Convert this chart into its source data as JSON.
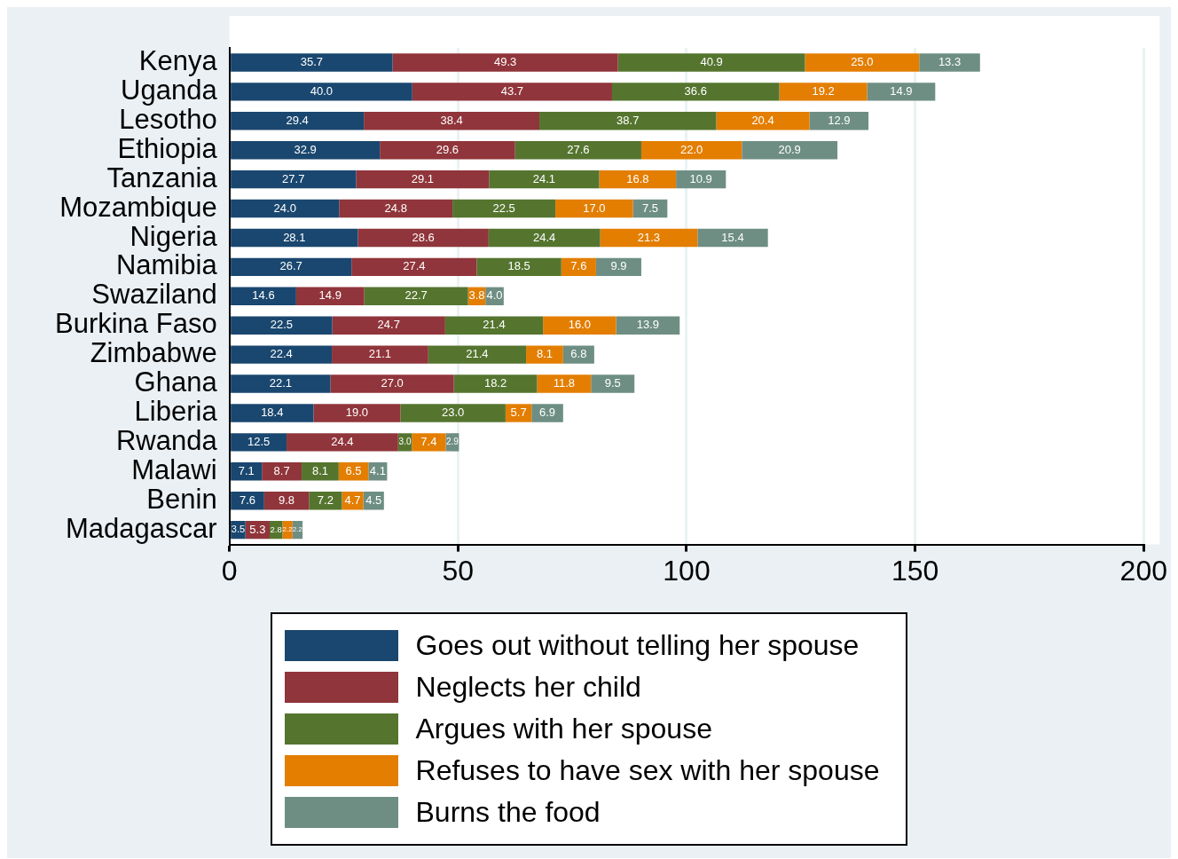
{
  "chart_data": {
    "type": "bar",
    "orientation": "horizontal",
    "stacked": true,
    "grid": "x",
    "legend": "bottom",
    "categories": [
      "Kenya",
      "Uganda",
      "Lesotho",
      "Ethiopia",
      "Tanzania",
      "Mozambique",
      "Nigeria",
      "Namibia",
      "Swaziland",
      "Burkina Faso",
      "Zimbabwe",
      "Ghana",
      "Liberia",
      "Rwanda",
      "Malawi",
      "Benin",
      "Madagascar"
    ],
    "xlim": [
      0,
      200
    ],
    "xticks": [
      0,
      50,
      100,
      150,
      200
    ],
    "series": [
      {
        "name": "Goes out without telling her spouse",
        "color": "#1a476f",
        "values": [
          35.7,
          40.0,
          29.4,
          32.9,
          27.7,
          24.0,
          28.1,
          26.7,
          14.6,
          22.5,
          22.4,
          22.1,
          18.4,
          12.5,
          7.1,
          7.6,
          3.5
        ],
        "value_labels": [
          "35.7",
          "40.0",
          "29.4",
          "32.9",
          "27.7",
          "24.0",
          "28.1",
          "26.7",
          "14.6",
          "22.5",
          "22.4",
          "22.1",
          "18.4",
          "12.5",
          "7.1",
          "7.6",
          "3.5"
        ]
      },
      {
        "name": "Neglects her child",
        "color": "#90353b",
        "values": [
          49.3,
          43.7,
          38.4,
          29.6,
          29.1,
          24.8,
          28.6,
          27.4,
          14.9,
          24.7,
          21.1,
          27.0,
          19.0,
          24.4,
          8.7,
          9.8,
          5.3
        ],
        "value_labels": [
          "49.3",
          "43.7",
          "38.4",
          "29.6",
          "29.1",
          "24.8",
          "28.6",
          "27.4",
          "14.9",
          "24.7",
          "21.1",
          "27.0",
          "19.0",
          "24.4",
          "8.7",
          "9.8",
          "5.3"
        ]
      },
      {
        "name": "Argues with her spouse",
        "color": "#55752f",
        "values": [
          40.9,
          36.6,
          38.7,
          27.6,
          24.1,
          22.5,
          24.4,
          18.5,
          22.7,
          21.4,
          21.4,
          18.2,
          23.0,
          3.0,
          8.1,
          7.2,
          2.8
        ],
        "value_labels": [
          "40.9",
          "36.6",
          "38.7",
          "27.6",
          "24.1",
          "22.5",
          "24.4",
          "18.5",
          "22.7",
          "21.4",
          "21.4",
          "18.2",
          "23.0",
          "3.0",
          "8.1",
          "7.2",
          "2.8"
        ]
      },
      {
        "name": "Refuses to have sex with her spouse",
        "color": "#e37e00",
        "values": [
          25.0,
          19.2,
          20.4,
          22.0,
          16.8,
          17.0,
          21.3,
          7.6,
          3.8,
          16.0,
          8.1,
          11.8,
          5.7,
          7.4,
          6.5,
          4.7,
          2.2
        ],
        "value_labels": [
          "25.0",
          "19.2",
          "20.4",
          "22.0",
          "16.8",
          "17.0",
          "21.3",
          "7.6",
          "3.8",
          "16.0",
          "8.1",
          "11.8",
          "5.7",
          "7.4",
          "6.5",
          "4.7",
          "2.2"
        ]
      },
      {
        "name": "Burns the food",
        "color": "#6e8e84",
        "values": [
          13.3,
          14.9,
          12.9,
          20.9,
          10.9,
          7.5,
          15.4,
          9.9,
          4.0,
          13.9,
          6.8,
          9.5,
          6.9,
          2.9,
          4.1,
          4.5,
          2.2
        ],
        "value_labels": [
          "13.3",
          "14.9",
          "12.9",
          "20.9",
          "10.9",
          "7.5",
          "15.4",
          "9.9",
          "4.0",
          "13.9",
          "6.8",
          "9.5",
          "6.9",
          "2.9",
          "4.1",
          "4.5",
          "2.2"
        ]
      }
    ]
  }
}
